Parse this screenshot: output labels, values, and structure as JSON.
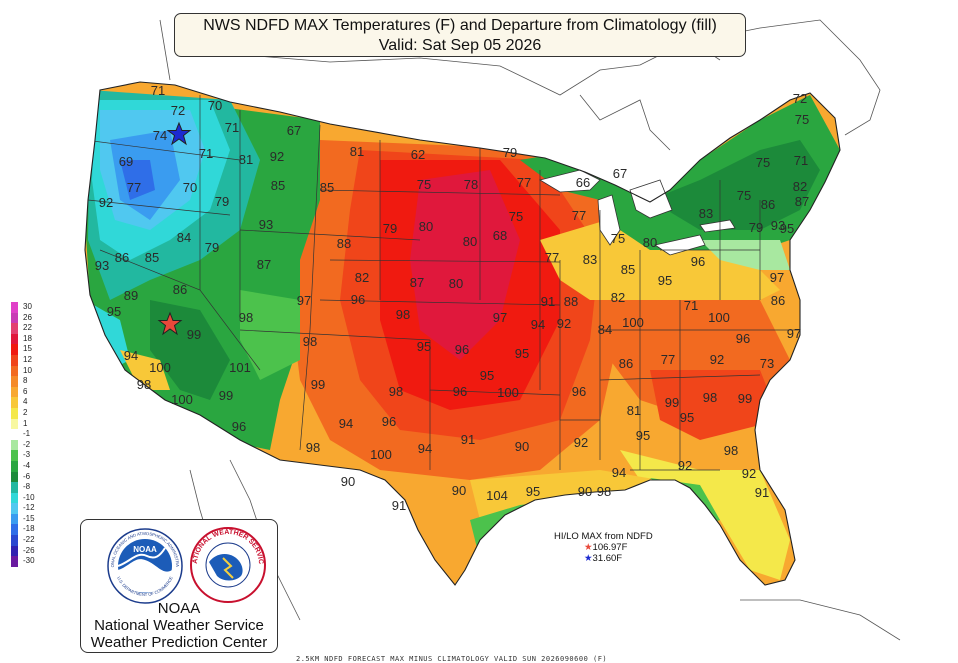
{
  "title": {
    "line1": "NWS NDFD MAX Temperatures (F) and Departure from Climatology (fill)",
    "line2": "Valid: Sat Sep 05 2026"
  },
  "legend": {
    "levels": [
      {
        "label": "30",
        "color": "#e040c8"
      },
      {
        "label": "26",
        "color": "#c83cb4"
      },
      {
        "label": "22",
        "color": "#e24070"
      },
      {
        "label": "18",
        "color": "#e0183c"
      },
      {
        "label": "15",
        "color": "#f01a10"
      },
      {
        "label": "12",
        "color": "#f0451a"
      },
      {
        "label": "10",
        "color": "#f26a20"
      },
      {
        "label": "8",
        "color": "#f58a28"
      },
      {
        "label": "6",
        "color": "#f8a830"
      },
      {
        "label": "4",
        "color": "#f8c838"
      },
      {
        "label": "2",
        "color": "#f4e84a"
      },
      {
        "label": "1",
        "color": "#f8f8a0"
      },
      {
        "label": "-1",
        "color": "#ffffff"
      },
      {
        "label": "-2",
        "color": "#a8e8a0"
      },
      {
        "label": "-3",
        "color": "#4cc24c"
      },
      {
        "label": "-4",
        "color": "#2aa640"
      },
      {
        "label": "-6",
        "color": "#1c8a3a"
      },
      {
        "label": "-8",
        "color": "#22b8a0"
      },
      {
        "label": "-10",
        "color": "#30d8d8"
      },
      {
        "label": "-12",
        "color": "#50c8f0"
      },
      {
        "label": "-15",
        "color": "#3a9cf0"
      },
      {
        "label": "-18",
        "color": "#2f6ee8"
      },
      {
        "label": "-22",
        "color": "#2a48d0"
      },
      {
        "label": "-26",
        "color": "#3022b0"
      },
      {
        "label": "-30",
        "color": "#6a1aa0"
      }
    ]
  },
  "logo": {
    "ring_top": "NATIONAL OCEANIC AND ATMOSPHERIC ADMINISTRATION",
    "ring_bottom": "U.S. DEPARTMENT OF COMMERCE",
    "emblem": "NOAA",
    "nws_ring": "NATIONAL WEATHER SERVICE",
    "line1": "NOAA",
    "line2": "National Weather Service",
    "line3": "Weather Prediction Center"
  },
  "hilo": {
    "title": "HI/LO MAX from NDFD",
    "hi": "106.97F",
    "lo": "31.60F",
    "hi_color": "#e8483a",
    "lo_color": "#1c2ad0"
  },
  "footer": "2.5KM NDFD FORECAST MAX MINUS CLIMATOLOGY VALID SUN 2026090600 (F)",
  "values": [
    "71",
    "72",
    "70",
    "74",
    "71",
    "67",
    "69",
    "71",
    "81",
    "77",
    "70",
    "79",
    "85",
    "85",
    "81",
    "62",
    "79",
    "92",
    "92",
    "75",
    "78",
    "77",
    "66",
    "67",
    "72",
    "75",
    "75",
    "71",
    "75",
    "82",
    "86",
    "95",
    "93",
    "88",
    "79",
    "80",
    "80",
    "75",
    "77",
    "75",
    "80",
    "83",
    "79",
    "93",
    "87",
    "86",
    "84",
    "79",
    "68",
    "77",
    "83",
    "85",
    "95",
    "96",
    "93",
    "85",
    "87",
    "82",
    "87",
    "80",
    "91",
    "97",
    "89",
    "86",
    "82",
    "71",
    "86",
    "95",
    "98",
    "97",
    "96",
    "98",
    "97",
    "94",
    "92",
    "88",
    "84",
    "100",
    "100",
    "97",
    "98",
    "95",
    "96",
    "95",
    "86",
    "77",
    "92",
    "96",
    "73",
    "94",
    "99",
    "100",
    "101",
    "99",
    "98",
    "95",
    "96",
    "100",
    "96",
    "81",
    "99",
    "98",
    "95",
    "99",
    "98",
    "100",
    "99",
    "96",
    "94",
    "96",
    "94",
    "91",
    "92",
    "90",
    "95",
    "98",
    "100",
    "98",
    "94",
    "92",
    "92",
    "90",
    "91",
    "90",
    "104",
    "95",
    "90",
    "98",
    "91"
  ],
  "colors": {
    "hot": "#f01a10",
    "warm": "#f58a28",
    "cool": "#2aa640",
    "cold": "#50c8f0",
    "water": "#ffffff"
  }
}
